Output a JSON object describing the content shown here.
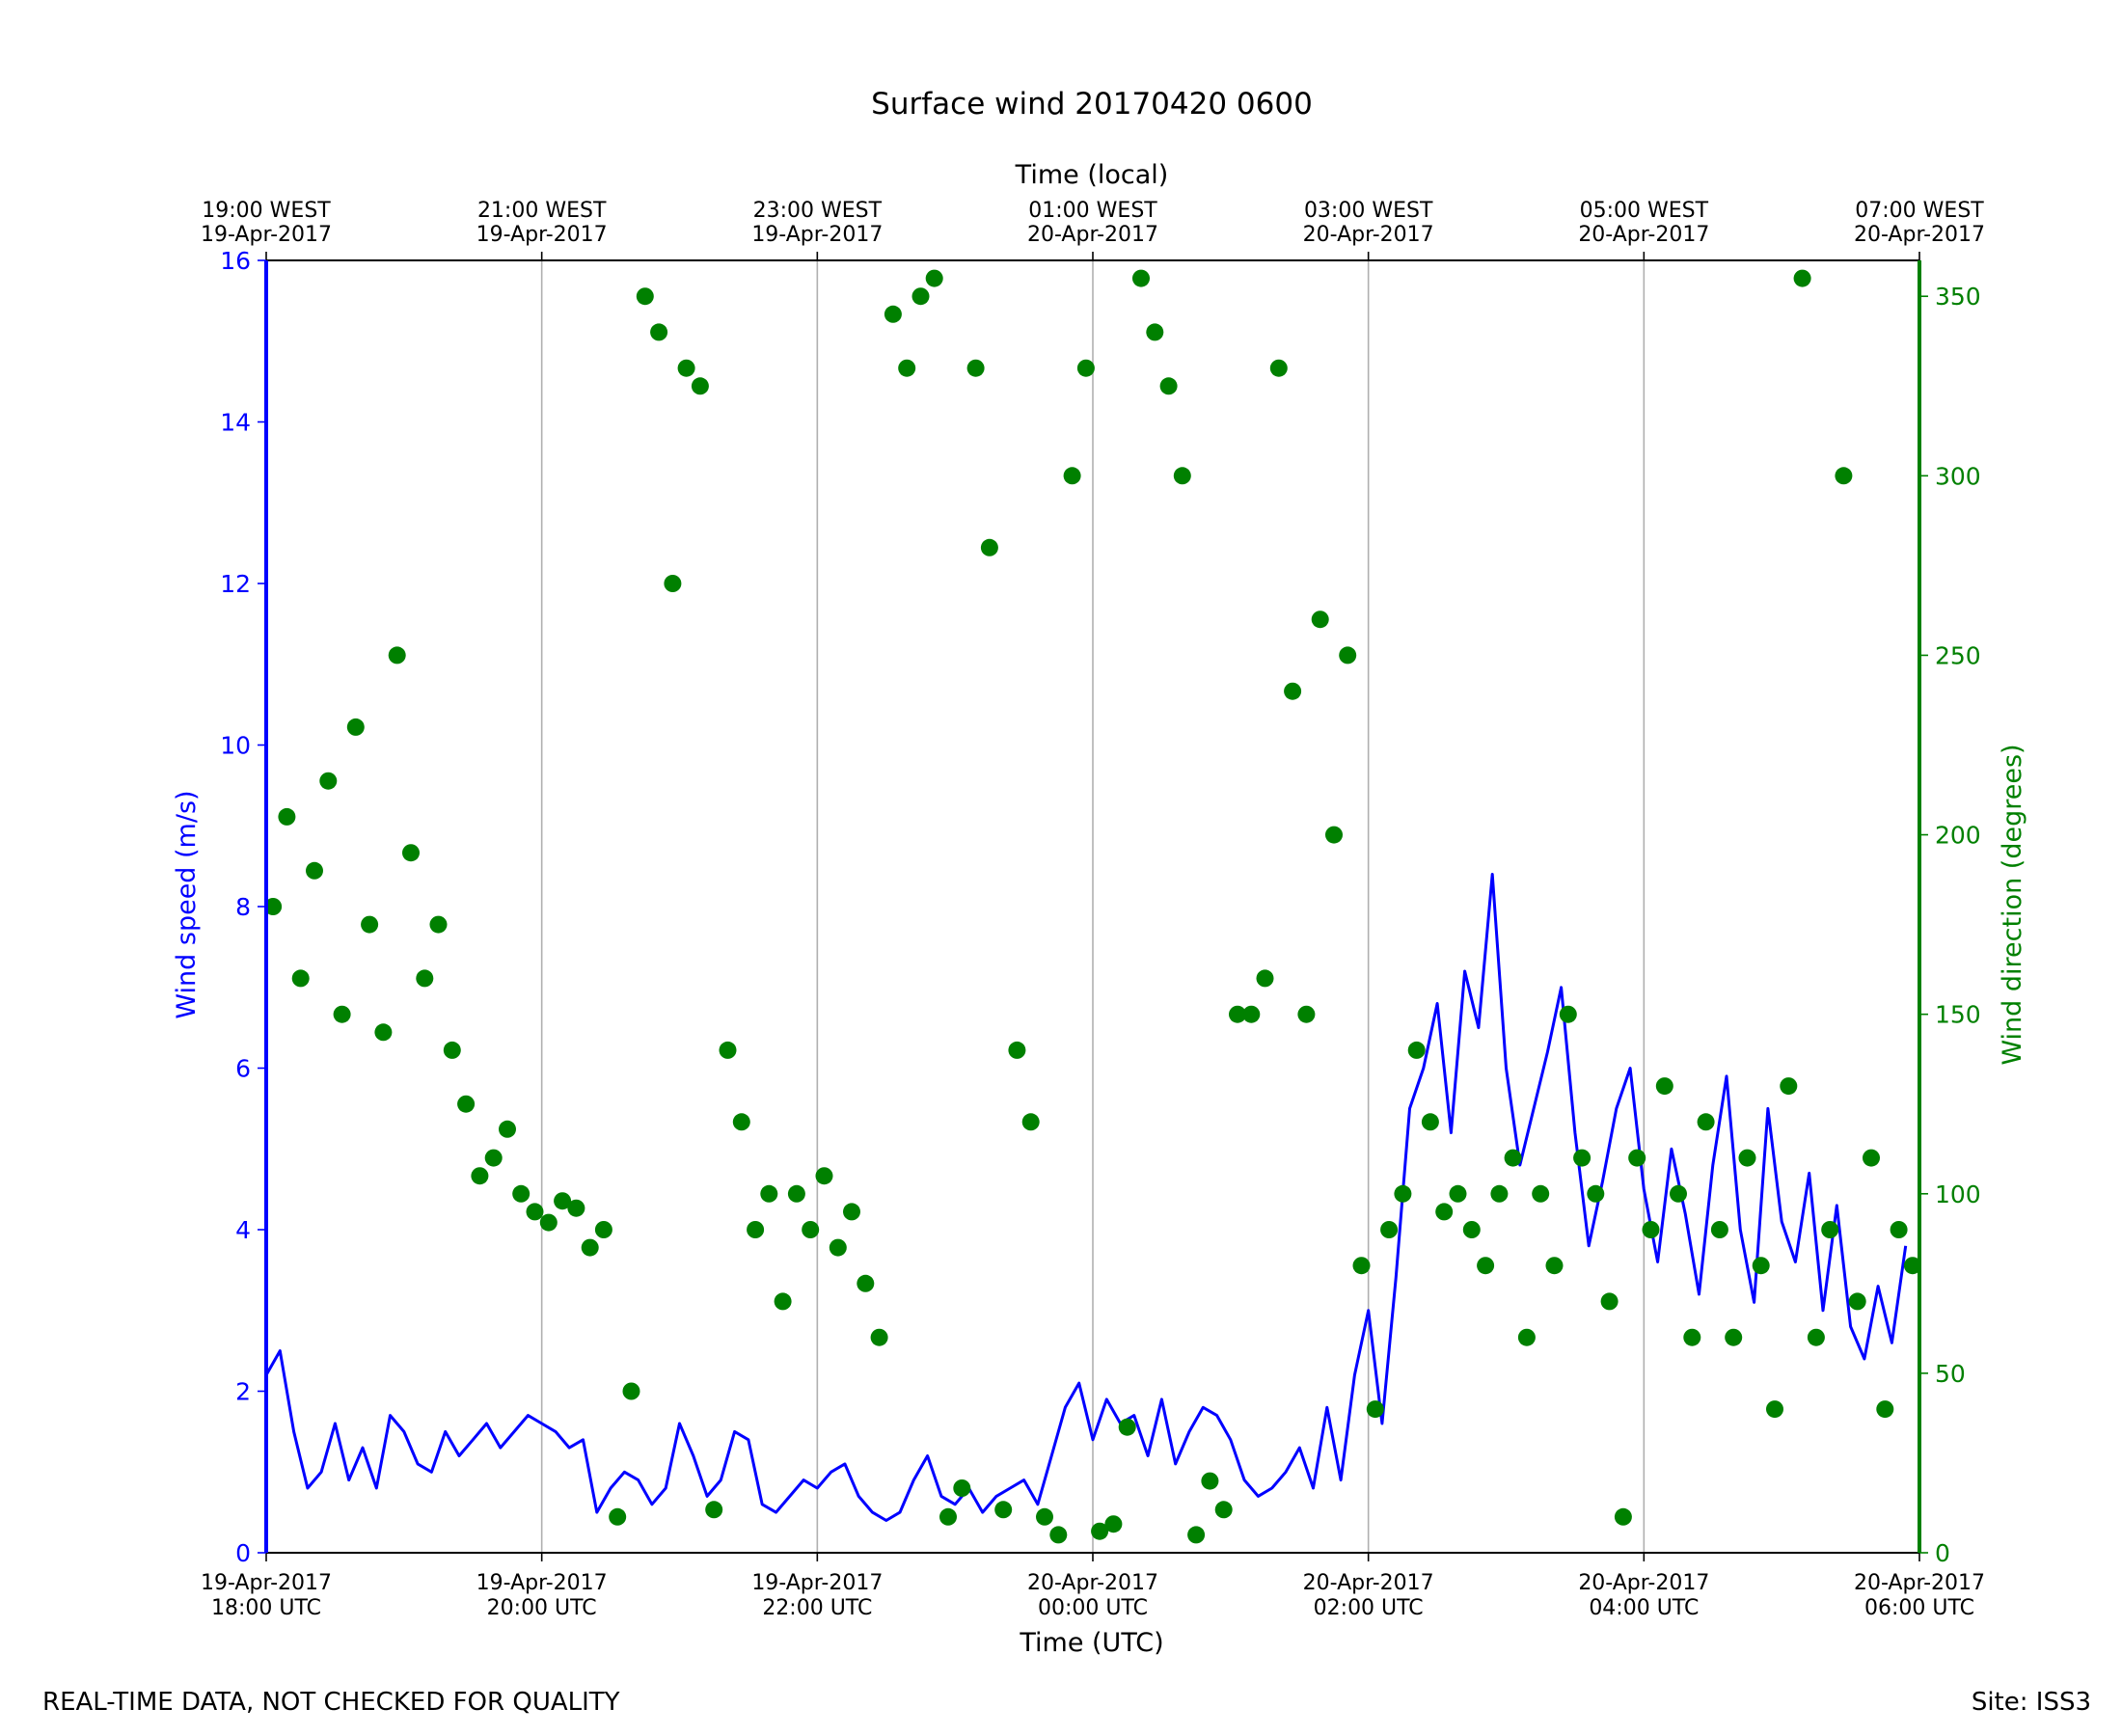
{
  "footer": {
    "note": "REAL-TIME DATA, NOT CHECKED FOR QUALITY",
    "site": "Site: ISS3"
  },
  "chart_data": {
    "type": "line+scatter",
    "title": "Surface wind 20170420 0600",
    "xlabel": "Time (UTC)",
    "x2label": "Time (local)",
    "ylabel": "Wind speed (m/s)",
    "y2label": "Wind direction (degrees)",
    "xlim_hours_utc": [
      0,
      12
    ],
    "ylim": [
      0,
      16
    ],
    "y2lim": [
      0,
      360
    ],
    "yticks": [
      "0",
      "2",
      "4",
      "6",
      "8",
      "10",
      "12",
      "14",
      "16"
    ],
    "y2ticks": [
      "0",
      "50",
      "100",
      "150",
      "200",
      "250",
      "300",
      "350"
    ],
    "xticks_bottom": [
      {
        "date": "19-Apr-2017",
        "time": "18:00 UTC"
      },
      {
        "date": "19-Apr-2017",
        "time": "20:00 UTC"
      },
      {
        "date": "19-Apr-2017",
        "time": "22:00 UTC"
      },
      {
        "date": "20-Apr-2017",
        "time": "00:00 UTC"
      },
      {
        "date": "20-Apr-2017",
        "time": "02:00 UTC"
      },
      {
        "date": "20-Apr-2017",
        "time": "04:00 UTC"
      },
      {
        "date": "20-Apr-2017",
        "time": "06:00 UTC"
      }
    ],
    "xticks_top": [
      {
        "time": "19:00 WEST",
        "date": "19-Apr-2017"
      },
      {
        "time": "21:00 WEST",
        "date": "19-Apr-2017"
      },
      {
        "time": "23:00 WEST",
        "date": "19-Apr-2017"
      },
      {
        "time": "01:00 WEST",
        "date": "20-Apr-2017"
      },
      {
        "time": "03:00 WEST",
        "date": "20-Apr-2017"
      },
      {
        "time": "05:00 WEST",
        "date": "20-Apr-2017"
      },
      {
        "time": "07:00 WEST",
        "date": "20-Apr-2017"
      }
    ],
    "grid": "vertical",
    "colors": {
      "speed": "#0000ff",
      "direction": "#008000"
    },
    "series": [
      {
        "kind": "line",
        "axis": "left",
        "hours_utc": [
          0.0,
          0.1,
          0.2,
          0.3,
          0.4,
          0.5,
          0.6,
          0.7,
          0.8,
          0.9,
          1.0,
          1.1,
          1.2,
          1.3,
          1.4,
          1.5,
          1.6,
          1.7,
          1.8,
          1.9,
          2.0,
          2.1,
          2.2,
          2.3,
          2.4,
          2.5,
          2.6,
          2.7,
          2.8,
          2.9,
          3.0,
          3.1,
          3.2,
          3.3,
          3.4,
          3.5,
          3.6,
          3.7,
          3.8,
          3.9,
          4.0,
          4.1,
          4.2,
          4.3,
          4.4,
          4.5,
          4.6,
          4.7,
          4.8,
          4.9,
          5.0,
          5.1,
          5.2,
          5.3,
          5.4,
          5.5,
          5.6,
          5.7,
          5.8,
          5.9,
          6.0,
          6.1,
          6.2,
          6.3,
          6.4,
          6.5,
          6.6,
          6.7,
          6.8,
          6.9,
          7.0,
          7.1,
          7.2,
          7.3,
          7.4,
          7.5,
          7.6,
          7.7,
          7.8,
          7.9,
          8.0,
          8.1,
          8.2,
          8.3,
          8.4,
          8.5,
          8.6,
          8.7,
          8.8,
          8.9,
          9.0,
          9.1,
          9.2,
          9.3,
          9.4,
          9.5,
          9.6,
          9.7,
          9.8,
          9.9,
          10.0,
          10.1,
          10.2,
          10.3,
          10.4,
          10.5,
          10.6,
          10.7,
          10.8,
          10.9,
          11.0,
          11.1,
          11.2,
          11.3,
          11.4,
          11.5,
          11.6,
          11.7,
          11.8,
          11.9
        ],
        "values": [
          2.2,
          2.5,
          1.5,
          0.8,
          1.0,
          1.6,
          0.9,
          1.3,
          0.8,
          1.7,
          1.5,
          1.1,
          1.0,
          1.5,
          1.2,
          1.4,
          1.6,
          1.3,
          1.5,
          1.7,
          1.6,
          1.5,
          1.3,
          1.4,
          0.5,
          0.8,
          1.0,
          0.9,
          0.6,
          0.8,
          1.6,
          1.2,
          0.7,
          0.9,
          1.5,
          1.4,
          0.6,
          0.5,
          0.7,
          0.9,
          0.8,
          1.0,
          1.1,
          0.7,
          0.5,
          0.4,
          0.5,
          0.9,
          1.2,
          0.7,
          0.6,
          0.8,
          0.5,
          0.7,
          0.8,
          0.9,
          0.6,
          1.2,
          1.8,
          2.1,
          1.4,
          1.9,
          1.6,
          1.7,
          1.2,
          1.9,
          1.1,
          1.5,
          1.8,
          1.7,
          1.4,
          0.9,
          0.7,
          0.8,
          1.0,
          1.3,
          0.8,
          1.8,
          0.9,
          2.2,
          3.0,
          1.6,
          3.4,
          5.5,
          6.0,
          6.8,
          5.2,
          7.2,
          6.5,
          8.4,
          6.0,
          4.8,
          5.5,
          6.2,
          7.0,
          5.2,
          3.8,
          4.6,
          5.5,
          6.0,
          4.5,
          3.6,
          5.0,
          4.2,
          3.2,
          4.8,
          5.9,
          4.0,
          3.1,
          5.5,
          4.1,
          3.6,
          4.7,
          3.0,
          4.3,
          2.8,
          2.4,
          3.3,
          2.6,
          3.8
        ]
      },
      {
        "kind": "scatter",
        "axis": "right",
        "hours_utc": [
          0.05,
          0.15,
          0.25,
          0.35,
          0.45,
          0.55,
          0.65,
          0.75,
          0.85,
          0.95,
          1.05,
          1.15,
          1.25,
          1.35,
          1.45,
          1.55,
          1.65,
          1.75,
          1.85,
          1.95,
          2.05,
          2.15,
          2.25,
          2.35,
          2.45,
          2.55,
          2.65,
          2.75,
          2.85,
          2.95,
          3.05,
          3.15,
          3.25,
          3.35,
          3.45,
          3.55,
          3.65,
          3.75,
          3.85,
          3.95,
          4.05,
          4.15,
          4.25,
          4.35,
          4.45,
          4.55,
          4.65,
          4.75,
          4.85,
          4.95,
          5.05,
          5.15,
          5.25,
          5.35,
          5.45,
          5.55,
          5.65,
          5.75,
          5.85,
          5.95,
          6.05,
          6.15,
          6.25,
          6.35,
          6.45,
          6.55,
          6.65,
          6.75,
          6.85,
          6.95,
          7.05,
          7.15,
          7.25,
          7.35,
          7.45,
          7.55,
          7.65,
          7.75,
          7.85,
          7.95,
          8.05,
          8.15,
          8.25,
          8.35,
          8.45,
          8.55,
          8.65,
          8.75,
          8.85,
          8.95,
          9.05,
          9.15,
          9.25,
          9.35,
          9.45,
          9.55,
          9.65,
          9.75,
          9.85,
          9.95,
          10.05,
          10.15,
          10.25,
          10.35,
          10.45,
          10.55,
          10.65,
          10.75,
          10.85,
          10.95,
          11.05,
          11.15,
          11.25,
          11.35,
          11.45,
          11.55,
          11.65,
          11.75,
          11.85,
          11.95
        ],
        "values": [
          180,
          205,
          160,
          190,
          215,
          150,
          230,
          175,
          145,
          250,
          195,
          160,
          175,
          140,
          125,
          105,
          110,
          118,
          100,
          95,
          92,
          98,
          96,
          85,
          90,
          10,
          45,
          350,
          340,
          270,
          330,
          325,
          12,
          140,
          120,
          90,
          100,
          70,
          100,
          90,
          105,
          85,
          95,
          75,
          60,
          345,
          330,
          350,
          355,
          10,
          18,
          330,
          280,
          12,
          140,
          120,
          10,
          5,
          300,
          330,
          6,
          8,
          35,
          355,
          340,
          325,
          300,
          5,
          20,
          12,
          150,
          150,
          160,
          330,
          240,
          150,
          260,
          200,
          250,
          80,
          40,
          90,
          100,
          140,
          120,
          95,
          100,
          90,
          80,
          100,
          110,
          60,
          100,
          80,
          150,
          110,
          100,
          70,
          10,
          110,
          90,
          130,
          100,
          60,
          120,
          90,
          60,
          110,
          80,
          40,
          130,
          355,
          60,
          90,
          300,
          70,
          110,
          40,
          90,
          80
        ]
      }
    ]
  }
}
